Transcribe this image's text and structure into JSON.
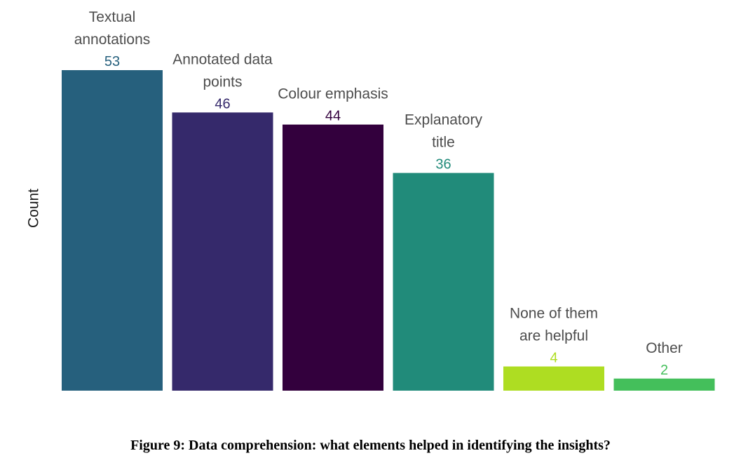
{
  "chart_data": {
    "type": "bar",
    "categories": [
      [
        "Textual",
        "annotations"
      ],
      [
        "Annotated data",
        "points"
      ],
      [
        "Colour emphasis"
      ],
      [
        "Explanatory",
        "title"
      ],
      [
        "None of them",
        "are helpful"
      ],
      [
        "Other"
      ]
    ],
    "values": [
      53,
      46,
      44,
      36,
      4,
      2
    ],
    "colors": [
      "#26607d",
      "#35296b",
      "#33003d",
      "#218b7a",
      "#aedd22",
      "#44bf5b"
    ],
    "ylabel": "Count",
    "ylim": [
      0,
      53
    ],
    "grid": false,
    "legend": "none"
  },
  "caption": "Figure 9: Data comprehension: what elements helped in identifying the insights?"
}
